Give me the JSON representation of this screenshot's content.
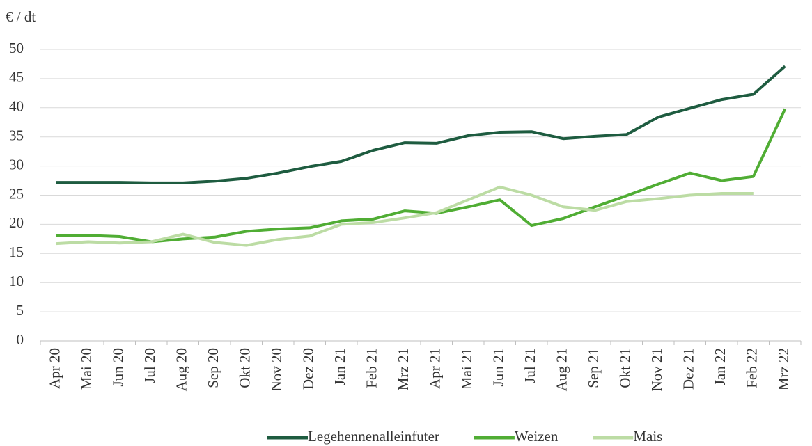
{
  "chart_data": {
    "type": "line",
    "y_label": "€ / dt",
    "categories": [
      "Apr 20",
      "Mai 20",
      "Jun 20",
      "Jul 20",
      "Aug 20",
      "Sep 20",
      "Okt 20",
      "Nov 20",
      "Dez 20",
      "Jan 21",
      "Feb 21",
      "Mrz 21",
      "Apr 21",
      "Mai 21",
      "Jun 21",
      "Jul 21",
      "Aug 21",
      "Sep 21",
      "Okt 21",
      "Nov 21",
      "Dez 21",
      "Jan 22",
      "Feb 22",
      "Mrz 22"
    ],
    "series": [
      {
        "name": "Legehennenalleinfuter",
        "color": "#1e5c40",
        "values": [
          27.2,
          27.2,
          27.2,
          27.1,
          27.1,
          27.4,
          27.9,
          28.8,
          29.9,
          30.8,
          32.7,
          34.0,
          33.9,
          35.2,
          35.8,
          35.9,
          34.7,
          35.1,
          35.4,
          38.4,
          39.9,
          41.4,
          42.3,
          47.1
        ]
      },
      {
        "name": "Weizen",
        "color": "#50ad34",
        "values": [
          18.1,
          18.1,
          17.9,
          17.0,
          17.5,
          17.8,
          18.8,
          19.2,
          19.4,
          20.6,
          20.9,
          22.3,
          21.9,
          23.0,
          24.2,
          19.8,
          21.0,
          23.0,
          24.9,
          26.9,
          28.8,
          27.5,
          28.2,
          39.8
        ]
      },
      {
        "name": "Mais",
        "color": "#bcdca4",
        "values": [
          16.7,
          17.0,
          16.8,
          17.0,
          18.3,
          16.9,
          16.4,
          17.4,
          18.0,
          20.0,
          20.3,
          21.1,
          22.0,
          24.2,
          26.4,
          25.0,
          23.0,
          22.4,
          23.9,
          24.4,
          25.0,
          25.3,
          25.3,
          null
        ]
      }
    ],
    "ylim": [
      0,
      50
    ],
    "yticks": [
      0,
      5,
      10,
      15,
      20,
      25,
      30,
      35,
      40,
      45,
      50
    ],
    "grid": true,
    "legend": "bottom"
  }
}
